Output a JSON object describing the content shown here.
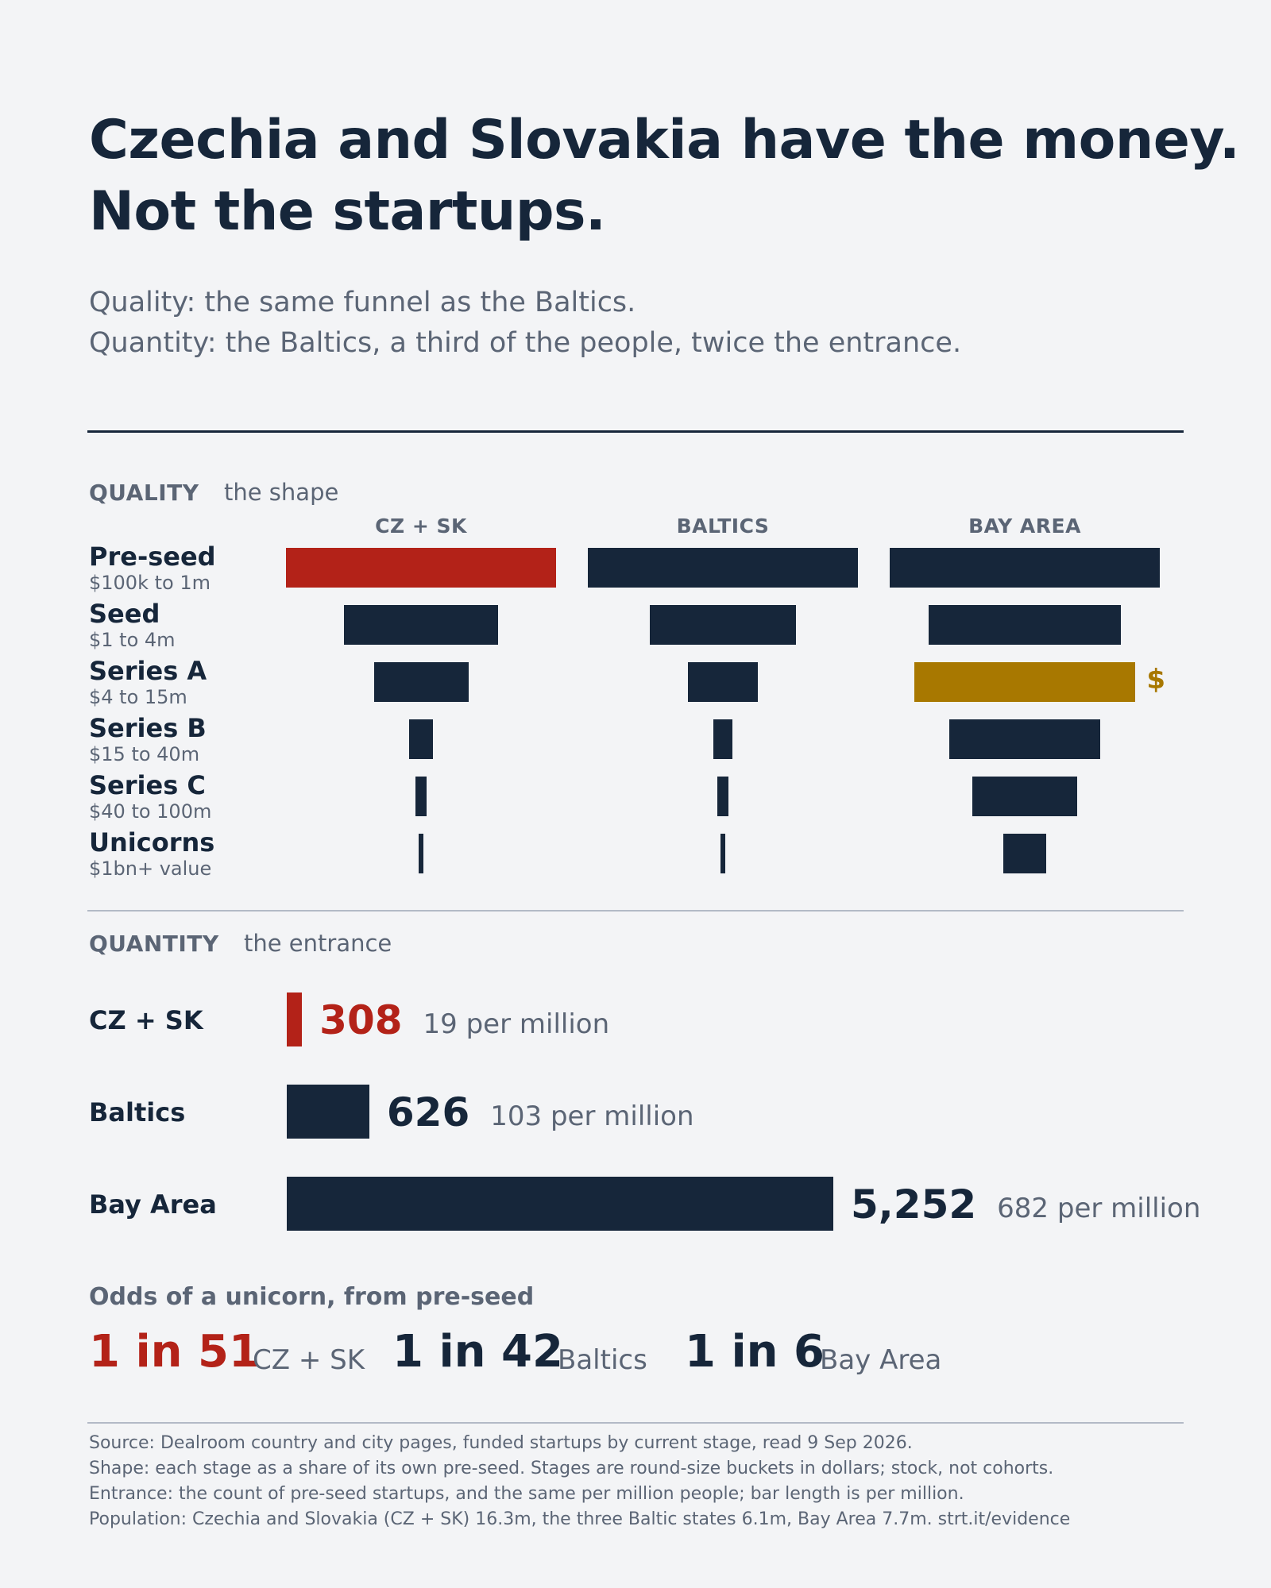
{
  "header": {
    "title_line1": "Czechia and Slovakia have the money.",
    "title_line2": "Not the startups.",
    "subtitle_line1": "Quality: the same funnel as the Baltics.",
    "subtitle_line2": "Quantity: the Baltics, a third of the people, twice the entrance."
  },
  "quality": {
    "section_title": "QUALITY",
    "section_sub": "the shape"
  },
  "quantity": {
    "section_title": "QUANTITY",
    "section_sub": "the entrance"
  },
  "odds": {
    "title": "Odds of a unicorn, from pre-seed",
    "items": [
      {
        "value": "1 in 51",
        "region": "CZ + SK"
      },
      {
        "value": "1 in 42",
        "region": "Baltics"
      },
      {
        "value": "1 in 6",
        "region": "Bay Area"
      }
    ]
  },
  "source": {
    "line1": "Source: Dealroom country and city pages, funded startups by current stage, read 9 Sep 2026.",
    "line2": "Shape: each stage as a share of its own pre-seed. Stages are round-size buckets in dollars; stock, not cohorts.",
    "line3": "Entrance: the count of pre-seed startups, and the same per million people; bar length is per million.",
    "line4": "Population: Czechia and Slovakia (CZ + SK) 16.3m, the three Baltic states 6.1m, Bay Area 7.7m. strt.it/evidence"
  },
  "colors": {
    "navy": "#16263a",
    "red": "#b32218",
    "gold": "#a87800",
    "grey_text": "#5b6575"
  },
  "chart_data": [
    {
      "type": "bar",
      "title": "QUALITY",
      "subtitle": "the shape",
      "categories": [
        "Pre-seed",
        "Seed",
        "Series A",
        "Series B",
        "Series C",
        "Unicorns"
      ],
      "category_ranges": [
        "$100k to 1m",
        "$1 to 4m",
        "$4 to 15m",
        "$15 to 40m",
        "$40 to 100m",
        "$1bn+ value"
      ],
      "series": [
        {
          "name": "CZ + SK",
          "values": [
            1.0,
            0.57,
            0.35,
            0.09,
            0.04,
            0.02
          ],
          "highlight": {
            "index": 0,
            "color": "#b32218"
          }
        },
        {
          "name": "BALTICS",
          "values": [
            1.0,
            0.54,
            0.26,
            0.07,
            0.04,
            0.02
          ]
        },
        {
          "name": "BAY AREA",
          "values": [
            1.0,
            0.71,
            0.82,
            0.56,
            0.39,
            0.16
          ],
          "highlight": {
            "index": 2,
            "color": "#a87800",
            "marker": "$"
          }
        }
      ],
      "orientation": "horizontal-centered"
    },
    {
      "type": "bar",
      "title": "QUANTITY",
      "subtitle": "the entrance",
      "categories": [
        "CZ + SK",
        "Baltics",
        "Bay Area"
      ],
      "values": [
        308,
        626,
        5252
      ],
      "value_labels": [
        "308",
        "626",
        "5,252"
      ],
      "per_million": [
        19,
        103,
        682
      ],
      "per_million_labels": [
        "19 per million",
        "103 per million",
        "682 per million"
      ],
      "bar_basis": "per_million",
      "colors": [
        "#b32218",
        "#16263a",
        "#16263a"
      ]
    }
  ]
}
